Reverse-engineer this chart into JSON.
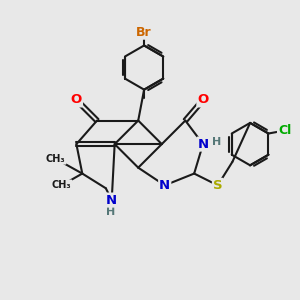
{
  "bg_color": "#e8e8e8",
  "bond_color": "#1a1a1a",
  "atom_colors": {
    "O": "#ff0000",
    "N": "#0000cc",
    "S": "#aaaa00",
    "Br": "#cc6600",
    "Cl": "#00aa00",
    "H": "#557777",
    "C": "#1a1a1a"
  },
  "font_size": 8.5
}
